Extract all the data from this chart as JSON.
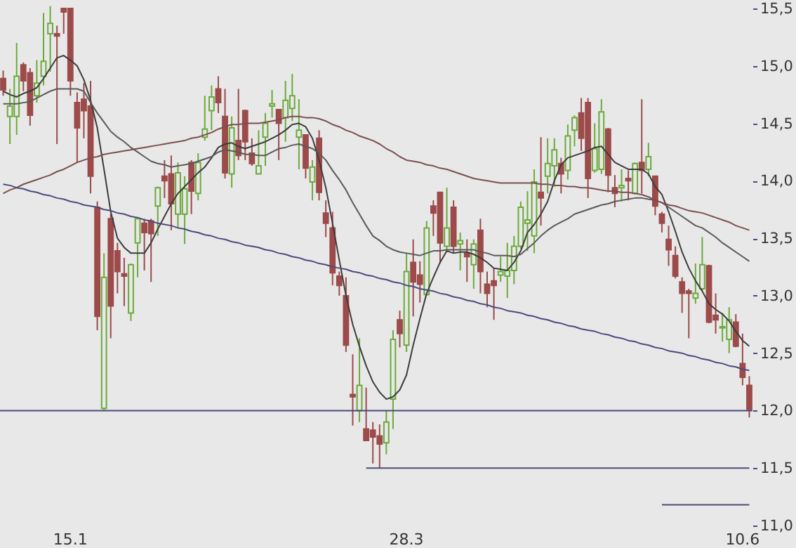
{
  "chart_data": {
    "type": "candlestick",
    "categories": [
      null,
      null,
      null,
      null,
      null,
      null,
      null,
      null,
      null,
      null,
      "15.1",
      null,
      null,
      null,
      null,
      null,
      null,
      null,
      null,
      null,
      null,
      null,
      null,
      null,
      null,
      null,
      null,
      null,
      null,
      null,
      null,
      null,
      null,
      null,
      null,
      null,
      null,
      null,
      null,
      null,
      null,
      null,
      null,
      null,
      null,
      null,
      null,
      null,
      null,
      null,
      null,
      null,
      null,
      null,
      null,
      null,
      null,
      null,
      null,
      null,
      "28.3",
      null,
      null,
      null,
      null,
      null,
      null,
      null,
      null,
      null,
      null,
      null,
      null,
      null,
      null,
      null,
      null,
      null,
      null,
      null,
      null,
      null,
      null,
      null,
      null,
      null,
      null,
      null,
      null,
      null,
      null,
      null,
      null,
      null,
      null,
      null,
      null,
      null,
      null,
      null,
      null,
      null,
      null,
      null,
      null,
      null,
      null,
      null,
      null,
      null,
      "10.6",
      null
    ],
    "ohlc": [
      [
        14.89,
        14.96,
        14.74,
        14.79
      ],
      [
        14.56,
        14.8,
        14.32,
        14.65
      ],
      [
        14.56,
        15.2,
        14.4,
        14.91
      ],
      [
        15.01,
        15.03,
        14.78,
        14.87
      ],
      [
        14.94,
        14.98,
        14.48,
        14.57
      ],
      [
        14.74,
        15.05,
        14.68,
        14.85
      ],
      [
        14.91,
        15.46,
        14.83,
        15.04
      ],
      [
        15.28,
        15.52,
        14.95,
        15.37
      ],
      [
        15.28,
        15.35,
        14.32,
        15.26
      ],
      [
        15.5,
        15.5,
        15.28,
        15.47
      ],
      [
        15.5,
        15.5,
        14.74,
        14.87
      ],
      [
        14.68,
        14.77,
        14.16,
        14.46
      ],
      [
        14.71,
        14.85,
        14.37,
        14.61
      ],
      [
        14.65,
        14.87,
        13.89,
        14.04
      ],
      [
        13.77,
        13.82,
        12.7,
        12.82
      ],
      [
        12.02,
        13.37,
        12.0,
        13.16
      ],
      [
        13.67,
        13.71,
        12.63,
        12.91
      ],
      [
        13.39,
        13.46,
        13.02,
        13.21
      ],
      [
        13.19,
        13.33,
        12.91,
        13.17
      ],
      [
        12.85,
        13.28,
        12.78,
        13.27
      ],
      [
        13.46,
        13.67,
        13.16,
        13.67
      ],
      [
        13.63,
        13.67,
        13.22,
        13.55
      ],
      [
        13.65,
        13.67,
        13.12,
        13.54
      ],
      [
        13.78,
        13.95,
        13.52,
        13.94
      ],
      [
        14.04,
        14.18,
        13.85,
        14.0
      ],
      [
        14.06,
        14.22,
        13.57,
        13.8
      ],
      [
        13.71,
        14.16,
        13.59,
        14.07
      ],
      [
        13.71,
        14.04,
        13.45,
        13.93
      ],
      [
        14.16,
        14.18,
        13.71,
        13.91
      ],
      [
        13.89,
        14.24,
        13.83,
        14.16
      ],
      [
        14.38,
        14.74,
        14.35,
        14.45
      ],
      [
        14.61,
        14.83,
        14.44,
        14.73
      ],
      [
        14.8,
        14.91,
        14.59,
        14.68
      ],
      [
        14.56,
        14.8,
        14.02,
        14.07
      ],
      [
        14.06,
        14.56,
        13.94,
        14.46
      ],
      [
        14.35,
        14.8,
        14.18,
        14.22
      ],
      [
        14.61,
        14.62,
        14.18,
        14.34
      ],
      [
        14.24,
        14.37,
        14.13,
        14.15
      ],
      [
        14.06,
        14.44,
        14.06,
        14.13
      ],
      [
        14.38,
        14.59,
        14.13,
        14.5
      ],
      [
        14.65,
        14.79,
        14.55,
        14.67
      ],
      [
        14.62,
        14.62,
        14.18,
        14.5
      ],
      [
        14.55,
        14.87,
        14.34,
        14.7
      ],
      [
        14.63,
        14.93,
        14.52,
        14.74
      ],
      [
        14.38,
        14.71,
        14.1,
        14.44
      ],
      [
        14.4,
        14.4,
        14.02,
        14.11
      ],
      [
        13.99,
        14.18,
        13.83,
        14.12
      ],
      [
        14.37,
        14.44,
        13.83,
        13.9
      ],
      [
        13.72,
        13.83,
        13.51,
        13.63
      ],
      [
        13.59,
        13.73,
        13.09,
        13.2
      ],
      [
        13.17,
        13.21,
        13.0,
        13.09
      ],
      [
        13.0,
        13.16,
        12.51,
        12.57
      ],
      [
        12.14,
        12.49,
        11.87,
        12.12
      ],
      [
        12.0,
        12.63,
        11.9,
        12.22
      ],
      [
        11.84,
        12.2,
        11.74,
        11.74
      ],
      [
        11.83,
        11.9,
        11.54,
        11.77
      ],
      [
        11.78,
        11.88,
        11.5,
        11.71
      ],
      [
        11.72,
        12.0,
        11.62,
        11.9
      ],
      [
        12.1,
        12.7,
        11.84,
        12.62
      ],
      [
        12.79,
        12.87,
        12.55,
        12.67
      ],
      [
        12.57,
        13.37,
        12.51,
        13.21
      ],
      [
        13.29,
        13.49,
        12.82,
        13.12
      ],
      [
        13.18,
        13.3,
        12.94,
        13.1
      ],
      [
        13.01,
        13.65,
        13.0,
        13.59
      ],
      [
        13.78,
        13.83,
        13.52,
        13.72
      ],
      [
        13.9,
        13.9,
        13.28,
        13.46
      ],
      [
        13.43,
        13.94,
        13.4,
        13.59
      ],
      [
        13.77,
        13.83,
        13.37,
        13.43
      ],
      [
        13.45,
        13.55,
        13.22,
        13.48
      ],
      [
        13.37,
        13.49,
        13.12,
        13.34
      ],
      [
        13.27,
        13.49,
        13.06,
        13.45
      ],
      [
        13.57,
        13.67,
        13.02,
        13.21
      ],
      [
        13.1,
        13.21,
        12.9,
        13.02
      ],
      [
        13.13,
        13.24,
        12.79,
        13.09
      ],
      [
        13.18,
        13.34,
        13.12,
        13.21
      ],
      [
        13.17,
        13.46,
        12.98,
        13.22
      ],
      [
        13.22,
        13.52,
        13.1,
        13.43
      ],
      [
        13.43,
        13.82,
        13.41,
        13.77
      ],
      [
        13.63,
        13.91,
        13.39,
        13.66
      ],
      [
        13.52,
        14.1,
        13.37,
        13.99
      ],
      [
        13.9,
        14.38,
        13.61,
        13.85
      ],
      [
        14.04,
        14.37,
        13.89,
        14.15
      ],
      [
        14.13,
        14.37,
        13.95,
        14.27
      ],
      [
        14.15,
        14.2,
        13.89,
        14.06
      ],
      [
        14.09,
        14.49,
        14.01,
        14.39
      ],
      [
        14.44,
        14.57,
        14.3,
        14.55
      ],
      [
        14.59,
        14.72,
        14.26,
        14.37
      ],
      [
        14.68,
        14.72,
        13.85,
        14.02
      ],
      [
        14.09,
        14.5,
        14.07,
        14.28
      ],
      [
        14.1,
        14.71,
        14.06,
        14.6
      ],
      [
        14.45,
        14.46,
        13.9,
        14.05
      ],
      [
        13.94,
        14.05,
        13.77,
        13.89
      ],
      [
        13.94,
        14.1,
        13.82,
        13.96
      ],
      [
        14.02,
        14.09,
        13.83,
        14.0
      ],
      [
        13.89,
        14.16,
        13.88,
        14.15
      ],
      [
        14.16,
        14.71,
        13.89,
        14.09
      ],
      [
        14.1,
        14.33,
        14.04,
        14.21
      ],
      [
        14.04,
        14.04,
        13.7,
        13.78
      ],
      [
        13.71,
        13.73,
        13.55,
        13.63
      ],
      [
        13.49,
        13.61,
        13.26,
        13.4
      ],
      [
        13.35,
        13.43,
        13.15,
        13.17
      ],
      [
        13.12,
        13.16,
        12.85,
        13.02
      ],
      [
        13.04,
        13.06,
        12.63,
        13.02
      ],
      [
        12.98,
        13.28,
        12.93,
        13.02
      ],
      [
        13.06,
        13.51,
        13.04,
        13.27
      ],
      [
        13.26,
        13.27,
        12.76,
        12.77
      ],
      [
        12.83,
        13.02,
        12.67,
        12.79
      ],
      [
        12.72,
        12.85,
        12.6,
        12.73
      ],
      [
        12.62,
        12.9,
        12.5,
        12.79
      ],
      [
        12.77,
        12.84,
        12.55,
        12.56
      ],
      [
        12.41,
        12.67,
        12.22,
        12.29
      ],
      [
        12.22,
        12.3,
        11.94,
        12.01
      ]
    ],
    "colors": [
      "#9c4a4a",
      "#6aaa3a",
      "#6aaa3a",
      "#9c4a4a",
      "#9c4a4a",
      "#6aaa3a",
      "#6aaa3a",
      "#6aaa3a",
      "#9c4a4a",
      "#9c4a4a",
      "#9c4a4a",
      "#9c4a4a",
      "#9c4a4a",
      "#9c4a4a",
      "#9c4a4a",
      "#6aaa3a",
      "#9c4a4a",
      "#9c4a4a",
      "#9c4a4a",
      "#6aaa3a",
      "#6aaa3a",
      "#9c4a4a",
      "#9c4a4a",
      "#6aaa3a",
      "#9c4a4a",
      "#9c4a4a",
      "#6aaa3a",
      "#6aaa3a",
      "#9c4a4a",
      "#6aaa3a",
      "#6aaa3a",
      "#6aaa3a",
      "#9c4a4a",
      "#9c4a4a",
      "#6aaa3a",
      "#9c4a4a",
      "#9c4a4a",
      "#9c4a4a",
      "#6aaa3a",
      "#6aaa3a",
      "#6aaa3a",
      "#9c4a4a",
      "#6aaa3a",
      "#6aaa3a",
      "#6aaa3a",
      "#9c4a4a",
      "#6aaa3a",
      "#9c4a4a",
      "#9c4a4a",
      "#9c4a4a",
      "#9c4a4a",
      "#9c4a4a",
      "#9c4a4a",
      "#6aaa3a",
      "#9c4a4a",
      "#9c4a4a",
      "#9c4a4a",
      "#6aaa3a",
      "#6aaa3a",
      "#9c4a4a",
      "#6aaa3a",
      "#9c4a4a",
      "#9c4a4a",
      "#6aaa3a",
      "#9c4a4a",
      "#9c4a4a",
      "#6aaa3a",
      "#9c4a4a",
      "#6aaa3a",
      "#9c4a4a",
      "#6aaa3a",
      "#9c4a4a",
      "#9c4a4a",
      "#9c4a4a",
      "#6aaa3a",
      "#6aaa3a",
      "#6aaa3a",
      "#6aaa3a",
      "#6aaa3a",
      "#6aaa3a",
      "#9c4a4a",
      "#6aaa3a",
      "#6aaa3a",
      "#9c4a4a",
      "#6aaa3a",
      "#6aaa3a",
      "#9c4a4a",
      "#9c4a4a",
      "#6aaa3a",
      "#6aaa3a",
      "#9c4a4a",
      "#9c4a4a",
      "#6aaa3a",
      "#9c4a4a",
      "#6aaa3a",
      "#9c4a4a",
      "#6aaa3a",
      "#9c4a4a",
      "#9c4a4a",
      "#9c4a4a",
      "#9c4a4a",
      "#9c4a4a",
      "#9c4a4a",
      "#6aaa3a",
      "#6aaa3a",
      "#9c4a4a",
      "#9c4a4a",
      "#6aaa3a",
      "#6aaa3a",
      "#9c4a4a",
      "#9c4a4a",
      "#9c4a4a"
    ],
    "ylim": [
      11.0,
      15.5
    ],
    "yticks": [
      {
        "value": 11,
        "label": "11,0"
      },
      {
        "value": 11.5,
        "label": "11,5"
      },
      {
        "value": 12,
        "label": "12,0"
      },
      {
        "value": 12.5,
        "label": "12,5"
      },
      {
        "value": 13,
        "label": "13,0"
      },
      {
        "value": 13.5,
        "label": "13,5"
      },
      {
        "value": 14,
        "label": "14,0"
      },
      {
        "value": 14.5,
        "label": "14,5"
      },
      {
        "value": 15,
        "label": "15,0"
      },
      {
        "value": 15.5,
        "label": "15,5"
      }
    ],
    "ref_lines": [
      {
        "axis": "y",
        "value": 12,
        "color": "#4b4b7d"
      }
    ],
    "series": [
      {
        "type": "line",
        "color": "#3c3c3c",
        "values": [
          14.78,
          14.75,
          14.73,
          14.76,
          14.78,
          14.81,
          14.89,
          14.98,
          15.07,
          15.09,
          15.05,
          15.0,
          14.88,
          14.7,
          14.46,
          14.1,
          13.73,
          13.5,
          13.42,
          13.37,
          13.37,
          13.37,
          13.46,
          13.58,
          13.69,
          13.8,
          13.89,
          13.95,
          14.01,
          14.07,
          14.12,
          14.2,
          14.29,
          14.32,
          14.33,
          14.3,
          14.28,
          14.3,
          14.32,
          14.34,
          14.37,
          14.4,
          14.44,
          14.49,
          14.5,
          14.47,
          14.37,
          14.18,
          13.94,
          13.63,
          13.31,
          13.0,
          12.75,
          12.56,
          12.39,
          12.25,
          12.16,
          12.1,
          12.12,
          12.18,
          12.31,
          12.57,
          12.8,
          13.02,
          13.16,
          13.29,
          13.39,
          13.37,
          13.38,
          13.38,
          13.36,
          13.33,
          13.29,
          13.24,
          13.23,
          13.22,
          13.29,
          13.39,
          13.55,
          13.62,
          13.71,
          13.82,
          14.0,
          14.14,
          14.2,
          14.22,
          14.24,
          14.26,
          14.29,
          14.3,
          14.23,
          14.16,
          14.13,
          14.1,
          14.1,
          14.1,
          14.06,
          13.95,
          13.88,
          13.73,
          13.56,
          13.38,
          13.24,
          13.13,
          13.04,
          12.93,
          12.88,
          12.84,
          12.78,
          12.69,
          12.61,
          12.56
        ]
      },
      {
        "type": "line",
        "color": "#5a5a5a",
        "values": [
          14.67,
          14.67,
          14.67,
          14.68,
          14.69,
          14.72,
          14.75,
          14.78,
          14.8,
          14.8,
          14.8,
          14.8,
          14.78,
          14.68,
          14.59,
          14.51,
          14.43,
          14.38,
          14.34,
          14.29,
          14.25,
          14.21,
          14.17,
          14.15,
          14.14,
          14.12,
          14.13,
          14.14,
          14.15,
          14.17,
          14.19,
          14.21,
          14.25,
          14.27,
          14.26,
          14.25,
          14.23,
          14.23,
          14.22,
          14.22,
          14.25,
          14.28,
          14.29,
          14.31,
          14.32,
          14.3,
          14.28,
          14.24,
          14.18,
          14.09,
          14.01,
          13.92,
          13.81,
          13.71,
          13.61,
          13.52,
          13.48,
          13.43,
          13.4,
          13.38,
          13.37,
          13.36,
          13.35,
          13.37,
          13.39,
          13.39,
          13.4,
          13.4,
          13.4,
          13.4,
          13.4,
          13.38,
          13.37,
          13.35,
          13.35,
          13.35,
          13.34,
          13.36,
          13.41,
          13.46,
          13.52,
          13.57,
          13.61,
          13.64,
          13.67,
          13.71,
          13.73,
          13.75,
          13.77,
          13.79,
          13.8,
          13.82,
          13.83,
          13.84,
          13.85,
          13.85,
          13.84,
          13.83,
          13.81,
          13.77,
          13.73,
          13.69,
          13.65,
          13.61,
          13.59,
          13.55,
          13.51,
          13.46,
          13.42,
          13.38,
          13.34,
          13.3
        ]
      },
      {
        "type": "line",
        "color": "#7b4f4f",
        "values": [
          13.89,
          13.92,
          13.94,
          13.97,
          13.99,
          14.01,
          14.03,
          14.05,
          14.08,
          14.1,
          14.13,
          14.16,
          14.18,
          14.2,
          14.21,
          14.23,
          14.24,
          14.25,
          14.26,
          14.27,
          14.28,
          14.29,
          14.3,
          14.31,
          14.32,
          14.33,
          14.34,
          14.35,
          14.37,
          14.38,
          14.4,
          14.42,
          14.45,
          14.47,
          14.49,
          14.49,
          14.5,
          14.5,
          14.5,
          14.51,
          14.52,
          14.53,
          14.55,
          14.56,
          14.56,
          14.55,
          14.55,
          14.54,
          14.52,
          14.49,
          14.47,
          14.44,
          14.42,
          14.39,
          14.37,
          14.35,
          14.32,
          14.28,
          14.25,
          14.21,
          14.18,
          14.17,
          14.16,
          14.14,
          14.13,
          14.11,
          14.1,
          14.08,
          14.06,
          14.04,
          14.02,
          14.01,
          14.0,
          13.99,
          13.98,
          13.98,
          13.98,
          13.98,
          13.98,
          13.98,
          13.97,
          13.97,
          13.96,
          13.96,
          13.95,
          13.95,
          13.94,
          13.94,
          13.93,
          13.92,
          13.91,
          13.91,
          13.9,
          13.9,
          13.89,
          13.88,
          13.86,
          13.83,
          13.81,
          13.79,
          13.78,
          13.76,
          13.74,
          13.73,
          13.72,
          13.7,
          13.68,
          13.66,
          13.64,
          13.61,
          13.59,
          13.57
        ]
      },
      {
        "type": "line",
        "color": "#4b4b7d",
        "values": [
          13.97,
          13.96,
          13.94,
          13.93,
          13.91,
          13.9,
          13.88,
          13.87,
          13.85,
          13.84,
          13.82,
          13.81,
          13.79,
          13.78,
          13.77,
          13.75,
          13.74,
          13.72,
          13.71,
          13.69,
          13.68,
          13.66,
          13.65,
          13.63,
          13.62,
          13.61,
          13.59,
          13.58,
          13.56,
          13.55,
          13.53,
          13.52,
          13.5,
          13.49,
          13.47,
          13.46,
          13.44,
          13.43,
          13.42,
          13.4,
          13.39,
          13.37,
          13.36,
          13.34,
          13.33,
          13.31,
          13.3,
          13.28,
          13.27,
          13.25,
          13.24,
          13.23,
          13.21,
          13.2,
          13.18,
          13.17,
          13.15,
          13.14,
          13.12,
          13.11,
          13.09,
          13.08,
          13.06,
          13.05,
          13.04,
          13.02,
          13.01,
          12.99,
          12.98,
          12.96,
          12.95,
          12.93,
          12.92,
          12.9,
          12.89,
          12.87,
          12.86,
          12.85,
          12.83,
          12.82,
          12.8,
          12.79,
          12.77,
          12.76,
          12.74,
          12.73,
          12.71,
          12.7,
          12.69,
          12.67,
          12.66,
          12.64,
          12.63,
          12.61,
          12.6,
          12.58,
          12.57,
          12.55,
          12.54,
          12.52,
          12.51,
          12.5,
          12.48,
          12.47,
          12.45,
          12.44,
          12.42,
          12.41,
          12.39,
          12.38,
          12.36,
          12.35
        ]
      },
      {
        "type": "line",
        "color": "#4b4b7d",
        "values": [
          null,
          null,
          null,
          null,
          null,
          null,
          null,
          null,
          null,
          null,
          null,
          null,
          null,
          null,
          null,
          null,
          null,
          null,
          null,
          null,
          null,
          null,
          null,
          null,
          null,
          null,
          null,
          null,
          null,
          null,
          null,
          null,
          null,
          null,
          null,
          null,
          null,
          null,
          null,
          null,
          null,
          null,
          null,
          null,
          null,
          null,
          null,
          null,
          null,
          null,
          null,
          null,
          null,
          null,
          11.5,
          11.5,
          11.5,
          11.5,
          11.5,
          11.5,
          11.5,
          11.5,
          11.5,
          11.5,
          11.5,
          11.5,
          11.5,
          11.5,
          11.5,
          11.5,
          11.5,
          11.5,
          11.5,
          11.5,
          11.5,
          11.5,
          11.5,
          11.5,
          11.5,
          11.5,
          11.5,
          11.5,
          11.5,
          11.5,
          11.5,
          11.5,
          11.5,
          11.5,
          11.5,
          11.5,
          11.5,
          11.5,
          11.5,
          11.5,
          11.5,
          11.5,
          11.5,
          11.5,
          11.5,
          11.5,
          11.5,
          11.5,
          11.5,
          11.5,
          11.5,
          11.5,
          11.5,
          11.5,
          11.5,
          11.5,
          11.5,
          11.5
        ]
      },
      {
        "type": "line",
        "color": "#4b4b7d",
        "values": [
          null,
          null,
          null,
          null,
          null,
          null,
          null,
          null,
          null,
          null,
          null,
          null,
          null,
          null,
          null,
          null,
          null,
          null,
          null,
          null,
          null,
          null,
          null,
          null,
          null,
          null,
          null,
          null,
          null,
          null,
          null,
          null,
          null,
          null,
          null,
          null,
          null,
          null,
          null,
          null,
          null,
          null,
          null,
          null,
          null,
          null,
          null,
          null,
          null,
          null,
          null,
          null,
          null,
          null,
          null,
          null,
          null,
          null,
          null,
          null,
          null,
          null,
          null,
          null,
          null,
          null,
          null,
          null,
          null,
          null,
          null,
          null,
          null,
          null,
          null,
          null,
          null,
          null,
          null,
          null,
          null,
          null,
          null,
          null,
          null,
          null,
          null,
          null,
          null,
          null,
          null,
          null,
          null,
          null,
          null,
          null,
          null,
          null,
          11.18,
          11.18,
          11.18,
          11.18,
          11.18,
          11.18,
          11.18,
          11.18,
          11.18,
          11.18,
          11.18,
          11.18,
          11.18,
          11.18
        ]
      }
    ]
  }
}
